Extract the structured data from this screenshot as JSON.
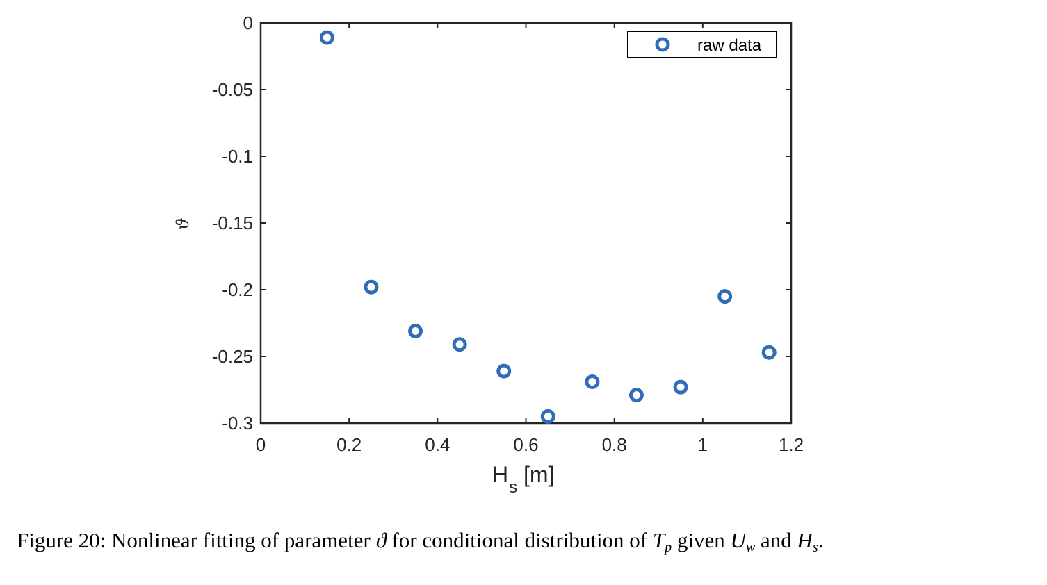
{
  "chart_data": {
    "type": "scatter",
    "xlabel": "H",
    "xlabel_sub": "s",
    "xlabel_unit": " [m]",
    "ylabel": "ϑ",
    "xlim": [
      0,
      1.2
    ],
    "ylim": [
      -0.3,
      0
    ],
    "xticks": [
      "0",
      "0.2",
      "0.4",
      "0.6",
      "0.8",
      "1",
      "1.2"
    ],
    "yticks": [
      "0",
      "-0.05",
      "-0.1",
      "-0.15",
      "-0.2",
      "-0.25",
      "-0.3"
    ],
    "grid": false,
    "legend_position": "top-right",
    "series": [
      {
        "name": "raw data",
        "marker": "circle-open",
        "color": "#2f6eb6",
        "x": [
          0.15,
          0.25,
          0.35,
          0.45,
          0.55,
          0.65,
          0.75,
          0.85,
          0.95,
          1.05,
          1.15
        ],
        "y": [
          -0.011,
          -0.198,
          -0.231,
          -0.241,
          -0.261,
          -0.295,
          -0.269,
          -0.279,
          -0.273,
          -0.205,
          -0.247
        ]
      }
    ]
  },
  "caption": {
    "prefix": "Figure 20: Nonlinear fitting of parameter ",
    "theta": "ϑ",
    "mid": " for conditional distribution of ",
    "tp_main": "T",
    "tp_sub": "p",
    "given": " given ",
    "uw_main": "U",
    "uw_sub": "w",
    "and": " and ",
    "hs_main": "H",
    "hs_sub": "s",
    "end": "."
  }
}
